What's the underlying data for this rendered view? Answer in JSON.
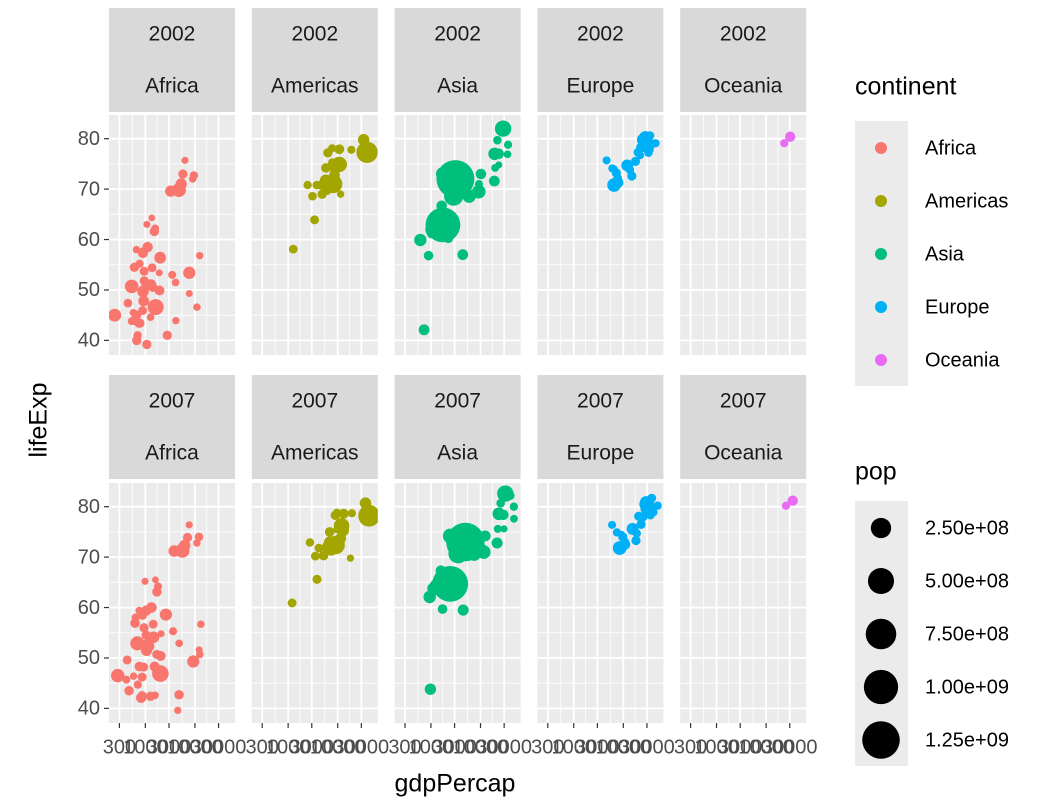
{
  "chart_data": {
    "type": "scatter",
    "xlabel": "gdpPercap",
    "ylabel": "lifeExp",
    "xscale": "log",
    "xlim": [
      185,
      64400
    ],
    "ylim": [
      37.1,
      84.7
    ],
    "xticks": [
      300,
      1000,
      3000,
      10000,
      30000
    ],
    "yticks": [
      40,
      50,
      60,
      70,
      80
    ],
    "grid": true,
    "legend": {
      "title": "continent",
      "position": "right"
    },
    "series": [
      {
        "name": "Africa",
        "color": "#F8766D"
      },
      {
        "name": "Americas",
        "color": "#A3A500"
      },
      {
        "name": "Asia",
        "color": "#00BF7D"
      },
      {
        "name": "Europe",
        "color": "#00B0F6"
      },
      {
        "name": "Oceania",
        "color": "#E76BF3"
      }
    ],
    "size_legend": {
      "title": "pop",
      "values": [
        250000000,
        500000000,
        750000000,
        1000000000,
        1250000000
      ],
      "labels": [
        "2.50e+08",
        "5.00e+08",
        "7.50e+08",
        "1.00e+09",
        "1.25e+09"
      ]
    },
    "panels": [
      {
        "strips": [
          "2002",
          "Africa"
        ],
        "x": [
          5288,
          2773,
          1373,
          11004,
          1038,
          446,
          1934,
          738,
          1423,
          1076,
          241,
          3484,
          1649,
          1908,
          4755,
          7703,
          765,
          531,
          12522,
          660,
          1112,
          945,
          575,
          1288,
          1275,
          531,
          9535,
          895,
          666,
          952,
          1579,
          9022,
          3258,
          633,
          4073,
          601,
          1615,
          6316,
          786,
          1353,
          1520,
          699,
          882,
          7710,
          1993,
          4128,
          899,
          886,
          5723,
          928,
          1072,
          672
        ],
        "values": [
          71.0,
          41.0,
          54.4,
          46.6,
          50.7,
          47.4,
          49.9,
          43.3,
          50.5,
          63.0,
          45.0,
          53.0,
          46.8,
          53.4,
          69.8,
          49.3,
          55.2,
          50.7,
          56.8,
          58.0,
          58.5,
          53.7,
          45.5,
          51.0,
          44.6,
          43.8,
          72.7,
          57.3,
          45.0,
          51.8,
          62.2,
          72.0,
          69.6,
          44.0,
          51.5,
          54.5,
          46.6,
          75.7,
          43.4,
          64.3,
          61.6,
          41.0,
          45.9,
          53.4,
          56.4,
          43.9,
          49.7,
          57.6,
          73.0,
          47.8,
          39.2,
          40.0
        ],
        "sizes": [
          31300000,
          10900000,
          7030000,
          1630000,
          12250000,
          7020000,
          15900000,
          4050000,
          8800000,
          610000,
          55400000,
          3330000,
          16300000,
          450000,
          73300000,
          500000,
          4410000,
          67900000,
          1300000,
          1460000,
          20600000,
          8800000,
          1330000,
          31400000,
          2050000,
          2810000,
          5370000,
          16500000,
          11800000,
          10600000,
          2830000,
          1200000,
          31200000,
          18500000,
          1970000,
          11100000,
          119900000,
          740000,
          7850000,
          170000,
          10900000,
          5360000,
          7750000,
          44400000,
          37100000,
          1130000,
          34600000,
          4980000,
          9770000,
          24700000,
          10600000,
          11900000
        ]
      },
      {
        "strips": [
          "2002",
          "Americas"
        ],
        "x": [
          8798,
          3413,
          8131,
          33329,
          10779,
          5755,
          7723,
          6341,
          4564,
          5773,
          5352,
          4858,
          1270,
          3099,
          6994,
          10742,
          2474,
          7357,
          3784,
          5909,
          18856,
          11461,
          39097,
          7727,
          8605
        ],
        "values": [
          74.3,
          63.9,
          71.0,
          79.8,
          77.9,
          71.7,
          78.1,
          77.2,
          70.8,
          74.2,
          70.7,
          69.0,
          58.1,
          68.6,
          72.0,
          74.9,
          70.8,
          74.7,
          70.8,
          69.9,
          77.8,
          69.0,
          77.3,
          75.3,
          72.8
        ],
        "sizes": [
          38300000,
          8450000,
          179900000,
          31900000,
          15500000,
          41000000,
          3830000,
          11200000,
          8650000,
          12900000,
          6350000,
          11200000,
          7600000,
          6680000,
          2660000,
          102500000,
          5150000,
          2990000,
          5880000,
          26800000,
          3860000,
          1100000,
          287700000,
          3360000,
          24300000
        ]
      },
      {
        "strips": [
          "2002",
          "Asia"
        ],
        "x": [
          727,
          23404,
          1136,
          896,
          3119,
          30209,
          1747,
          2874,
          9241,
          4391,
          21906,
          28605,
          3845,
          1647,
          19234,
          35110,
          9313,
          10207,
          2141,
          611,
          1057,
          19775,
          2093,
          2651,
          19014,
          36023,
          3015,
          4090,
          23235,
          5913,
          1764,
          4516,
          2235
        ],
        "values": [
          42.1,
          74.8,
          62.0,
          56.8,
          72.0,
          81.5,
          62.9,
          68.6,
          69.5,
          57.0,
          79.7,
          82.0,
          71.3,
          66.7,
          77.0,
          76.9,
          71.0,
          73.0,
          65.0,
          59.9,
          61.3,
          74.2,
          63.6,
          70.3,
          71.6,
          78.8,
          70.8,
          73.1,
          77.0,
          68.6,
          73.0,
          72.4,
          60.3
        ],
        "sizes": [
          25300000,
          660000,
          135700000,
          12900000,
          1280000000,
          6760000,
          1034000000,
          211000000,
          66900000,
          24000000,
          6030000,
          127100000,
          5310000,
          22200000,
          48000000,
          2110000,
          3680000,
          22700000,
          2670000,
          45600000,
          25900000,
          2710000,
          153000000,
          83000000,
          24500000,
          4200000,
          19600000,
          17200000,
          22500000,
          62800000,
          80900000,
          3390000,
          18700000
        ]
      },
      {
        "strips": [
          "2002",
          "Europe"
        ],
        "x": [
          4604,
          32418,
          30486,
          6018,
          7697,
          11628,
          17596,
          32167,
          28205,
          28926,
          30036,
          22514,
          14843,
          31163,
          34077,
          27968,
          6557,
          33725,
          44684,
          12002,
          19971,
          7885,
          7236,
          13639,
          22012,
          24835,
          29342,
          34481,
          6508,
          29479
        ],
        "values": [
          75.7,
          79.0,
          78.3,
          74.1,
          72.1,
          74.9,
          75.5,
          77.2,
          78.4,
          79.6,
          78.7,
          78.3,
          72.6,
          80.5,
          77.8,
          80.2,
          74.0,
          78.5,
          79.1,
          74.7,
          77.3,
          71.3,
          73.2,
          73.8,
          76.7,
          79.8,
          80.0,
          80.6,
          70.8,
          78.5
        ],
        "sizes": [
          3510000,
          8150000,
          10300000,
          4170000,
          7660000,
          4480000,
          10300000,
          5370000,
          5190000,
          59900000,
          82400000,
          10600000,
          10100000,
          290000,
          3880000,
          57900000,
          720000,
          16100000,
          4540000,
          38600000,
          10400000,
          22400000,
          10100000,
          5410000,
          2010000,
          40200000,
          8950000,
          7360000,
          67300000,
          59900000
        ]
      },
      {
        "strips": [
          "2002",
          "Oceania"
        ],
        "x": [
          30688,
          23190
        ],
        "values": [
          80.4,
          79.1
        ],
        "sizes": [
          19500000,
          3910000
        ]
      },
      {
        "strips": [
          "2007",
          "Africa"
        ],
        "x": [
          6223,
          4797,
          1441,
          12570,
          1217,
          430,
          2042,
          706,
          1704,
          986,
          278,
          3633,
          1545,
          2082,
          5581,
          12154,
          641,
          691,
          13206,
          753,
          1327,
          943,
          579,
          1463,
          1569,
          415,
          12057,
          1045,
          759,
          1042,
          1803,
          10957,
          3820,
          824,
          4811,
          620,
          2014,
          7670,
          863,
          1598,
          1712,
          863,
          926,
          9270,
          2602,
          4513,
          1107,
          883,
          7093,
          1056,
          1271,
          470
        ],
        "values": [
          72.3,
          42.7,
          56.7,
          50.7,
          52.3,
          49.6,
          50.4,
          44.7,
          50.7,
          65.2,
          46.5,
          55.3,
          48.3,
          54.8,
          71.3,
          51.6,
          58.0,
          52.9,
          56.7,
          59.4,
          60.0,
          56.0,
          46.4,
          54.1,
          42.6,
          45.7,
          74.0,
          59.4,
          48.3,
          54.5,
          64.2,
          72.8,
          71.2,
          42.1,
          52.9,
          56.9,
          46.9,
          76.4,
          46.2,
          65.5,
          63.1,
          42.6,
          48.2,
          49.3,
          58.6,
          39.6,
          52.5,
          58.4,
          73.9,
          51.5,
          42.4,
          43.5
        ],
        "sizes": [
          33300000,
          12400000,
          8080000,
          1640000,
          14300000,
          8390000,
          17700000,
          4370000,
          10200000,
          710000,
          64600000,
          3800000,
          18000000,
          500000,
          80300000,
          550000,
          4900000,
          76500000,
          1450000,
          1690000,
          22900000,
          9900000,
          1470000,
          35600000,
          2010000,
          3190000,
          6040000,
          19200000,
          13300000,
          12000000,
          3270000,
          1250000,
          33800000,
          20000000,
          2060000,
          12900000,
          135000000,
          800000,
          8860000,
          200000,
          12300000,
          6140000,
          9100000,
          44000000,
          42300000,
          1130000,
          38100000,
          5700000,
          10300000,
          29200000,
          11700000,
          12300000
        ]
      },
      {
        "strips": [
          "2007",
          "Americas"
        ],
        "x": [
          12779,
          3822,
          9066,
          36319,
          13172,
          7007,
          9645,
          8948,
          6025,
          6873,
          5728,
          5186,
          1202,
          3548,
          7321,
          11978,
          2749,
          9809,
          4173,
          7409,
          19329,
          18009,
          42952,
          10611,
          11416
        ],
        "values": [
          75.3,
          65.6,
          72.4,
          80.7,
          78.6,
          72.9,
          78.8,
          78.3,
          72.2,
          75.0,
          71.9,
          70.3,
          60.9,
          70.2,
          72.6,
          76.2,
          72.9,
          75.5,
          71.8,
          71.4,
          78.7,
          69.8,
          78.2,
          76.4,
          73.7
        ],
        "sizes": [
          40300000,
          9100000,
          190000000,
          33400000,
          16300000,
          44200000,
          4130000,
          11400000,
          9300000,
          13800000,
          6900000,
          12600000,
          8500000,
          7480000,
          2780000,
          108700000,
          5680000,
          3240000,
          6670000,
          28700000,
          3940000,
          1060000,
          301000000,
          3450000,
          26100000
        ]
      },
      {
        "strips": [
          "2007",
          "Asia"
        ],
        "x": [
          975,
          29796,
          1391,
          1714,
          4959,
          39725,
          2452,
          3541,
          11606,
          4471,
          25523,
          31656,
          4519,
          1593,
          23348,
          47307,
          10461,
          12452,
          3096,
          944,
          1091,
          22316,
          2606,
          3190,
          21655,
          47143,
          3970,
          4185,
          28718,
          7458,
          2442,
          3025,
          2281
        ],
        "values": [
          43.8,
          75.6,
          64.1,
          59.7,
          73.0,
          82.2,
          64.7,
          70.7,
          71.0,
          59.5,
          80.7,
          82.6,
          72.5,
          67.3,
          78.6,
          77.6,
          72.0,
          74.2,
          66.8,
          62.1,
          63.8,
          75.6,
          65.5,
          71.7,
          72.8,
          80.0,
          72.4,
          74.1,
          78.4,
          70.6,
          74.2,
          73.4,
          62.7
        ],
        "sizes": [
          31900000,
          710000,
          150000000,
          14100000,
          1318700000,
          6980000,
          1110000000,
          223500000,
          69500000,
          27500000,
          6430000,
          127500000,
          6050000,
          23300000,
          49000000,
          2510000,
          3920000,
          24800000,
          2870000,
          47800000,
          28900000,
          3200000,
          169000000,
          91100000,
          27600000,
          4550000,
          20400000,
          19300000,
          23200000,
          65100000,
          85300000,
          4020000,
          22200000
        ]
      },
      {
        "strips": [
          "2007",
          "Europe"
        ],
        "x": [
          5937,
          36126,
          33693,
          7446,
          10681,
          14619,
          22833,
          35278,
          33207,
          30470,
          32170,
          27538,
          18009,
          36181,
          40676,
          28570,
          9254,
          36798,
          49357,
          15390,
          20510,
          10808,
          9787,
          18678,
          25768,
          28821,
          33860,
          37506,
          8458,
          33203
        ],
        "values": [
          76.4,
          79.8,
          79.4,
          74.9,
          73.0,
          75.7,
          76.5,
          78.3,
          79.3,
          80.7,
          79.4,
          79.5,
          73.3,
          81.8,
          78.9,
          80.5,
          74.5,
          79.8,
          80.2,
          75.6,
          78.1,
          72.5,
          74.0,
          74.7,
          77.9,
          80.9,
          80.9,
          81.7,
          71.8,
          79.4
        ],
        "sizes": [
          3600000,
          8200000,
          10400000,
          4550000,
          7320000,
          4490000,
          10200000,
          5470000,
          5240000,
          61100000,
          82400000,
          10700000,
          9960000,
          300000,
          4100000,
          58100000,
          680000,
          16600000,
          4630000,
          38500000,
          10600000,
          22300000,
          10200000,
          5450000,
          2010000,
          40400000,
          9030000,
          7550000,
          71200000,
          60800000
        ]
      },
      {
        "strips": [
          "2007",
          "Oceania"
        ],
        "x": [
          34435,
          25185
        ],
        "values": [
          81.2,
          80.2
        ],
        "sizes": [
          20400000,
          4120000
        ]
      }
    ]
  }
}
